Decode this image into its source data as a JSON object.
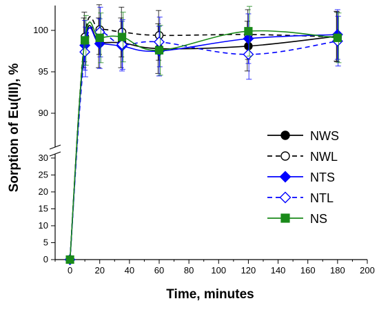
{
  "chart_data": {
    "type": "line",
    "xlabel": "Time, minutes",
    "ylabel": "Sorption of Eu(III), %",
    "xlim": [
      -10,
      200
    ],
    "x_ticks": [
      "0",
      "20",
      "40",
      "60",
      "80",
      "100",
      "120",
      "140",
      "160",
      "180",
      "200"
    ],
    "y_break": true,
    "y_upper_range": [
      86,
      103
    ],
    "y_upper_ticks": [
      "90",
      "95",
      "100"
    ],
    "y_lower_range": [
      0,
      31
    ],
    "y_lower_ticks": [
      "0",
      "5",
      "10",
      "15",
      "20",
      "25",
      "30"
    ],
    "legend_position": "right",
    "series": [
      {
        "name": "NWS",
        "color": "#000000",
        "marker": "circle",
        "filled": true,
        "dashed": false,
        "points": [
          {
            "x": 0,
            "y": 0,
            "err": 0
          },
          {
            "x": 10,
            "y": 98.5,
            "err": 3.0
          },
          {
            "x": 20,
            "y": 98.5,
            "err": 3.0
          },
          {
            "x": 35,
            "y": 98.5,
            "err": 3.0
          },
          {
            "x": 60,
            "y": 97.8,
            "err": 3.0
          },
          {
            "x": 120,
            "y": 98.1,
            "err": 3.0
          },
          {
            "x": 180,
            "y": 99.3,
            "err": 3.0
          }
        ]
      },
      {
        "name": "NWL",
        "color": "#000000",
        "marker": "circle",
        "filled": false,
        "dashed": true,
        "points": [
          {
            "x": 0,
            "y": 0,
            "err": 0
          },
          {
            "x": 10,
            "y": 99.2,
            "err": 3.0
          },
          {
            "x": 20,
            "y": 100.1,
            "err": 3.0
          },
          {
            "x": 35,
            "y": 99.8,
            "err": 3.0
          },
          {
            "x": 60,
            "y": 99.4,
            "err": 3.0
          },
          {
            "x": 120,
            "y": 99.5,
            "err": 3.0
          },
          {
            "x": 180,
            "y": 99.2,
            "err": 3.0
          }
        ]
      },
      {
        "name": "NTS",
        "color": "#0000ff",
        "marker": "diamond",
        "filled": true,
        "dashed": false,
        "points": [
          {
            "x": 0,
            "y": 0,
            "err": 0
          },
          {
            "x": 10,
            "y": 98.2,
            "err": 3.0
          },
          {
            "x": 20,
            "y": 98.4,
            "err": 3.0
          },
          {
            "x": 35,
            "y": 98.1,
            "err": 3.0
          },
          {
            "x": 60,
            "y": 97.5,
            "err": 3.0
          },
          {
            "x": 120,
            "y": 99.0,
            "err": 3.0
          },
          {
            "x": 180,
            "y": 99.5,
            "err": 3.0
          }
        ]
      },
      {
        "name": "NTL",
        "color": "#0000ff",
        "marker": "diamond",
        "filled": false,
        "dashed": true,
        "points": [
          {
            "x": 0,
            "y": 0,
            "err": 0
          },
          {
            "x": 10,
            "y": 97.4,
            "err": 3.0
          },
          {
            "x": 20,
            "y": 99.8,
            "err": 3.0
          },
          {
            "x": 35,
            "y": 98.3,
            "err": 3.0
          },
          {
            "x": 60,
            "y": 98.6,
            "err": 3.0
          },
          {
            "x": 120,
            "y": 97.1,
            "err": 3.0
          },
          {
            "x": 180,
            "y": 98.7,
            "err": 3.0
          }
        ]
      },
      {
        "name": "NS",
        "color": "#1a8a1a",
        "marker": "square",
        "filled": true,
        "dashed": false,
        "points": [
          {
            "x": 0,
            "y": 0,
            "err": 0
          },
          {
            "x": 10,
            "y": 98.8,
            "err": 3.0
          },
          {
            "x": 20,
            "y": 99.1,
            "err": 3.0
          },
          {
            "x": 35,
            "y": 99.2,
            "err": 3.0
          },
          {
            "x": 60,
            "y": 97.6,
            "err": 3.0
          },
          {
            "x": 120,
            "y": 99.9,
            "err": 3.0
          },
          {
            "x": 180,
            "y": 99.1,
            "err": 3.0
          }
        ]
      }
    ]
  }
}
